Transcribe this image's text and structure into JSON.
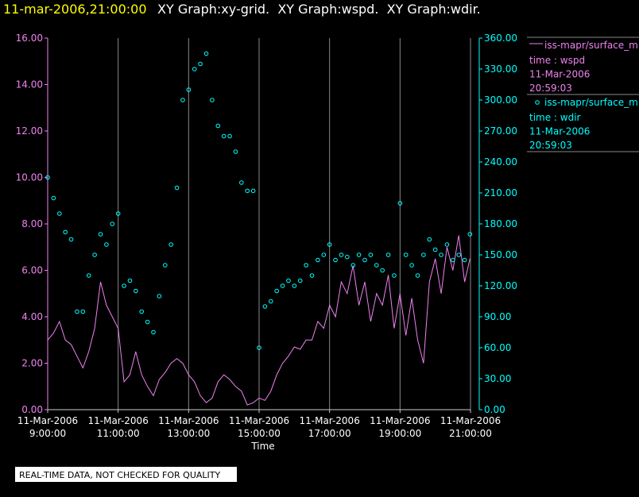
{
  "chart_data": {
    "type": "line",
    "header": {
      "timestamp": "11-mar-2006,21:00:00",
      "graphs": "XY Graph:xy-grid.  XY Graph:wspd.  XY Graph:wdir."
    },
    "x_label": "Time",
    "note": "REAL-TIME DATA, NOT CHECKED FOR QUALITY",
    "grid": true,
    "xlim": [
      "2006-03-11T09:00:00",
      "2006-03-11T21:00:00"
    ],
    "xticks": [
      {
        "value": "2006-03-11T09:00:00",
        "label": [
          "11-Mar-2006",
          "9:00:00"
        ]
      },
      {
        "value": "2006-03-11T11:00:00",
        "label": [
          "11-Mar-2006",
          "11:00:00"
        ]
      },
      {
        "value": "2006-03-11T13:00:00",
        "label": [
          "11-Mar-2006",
          "13:00:00"
        ]
      },
      {
        "value": "2006-03-11T15:00:00",
        "label": [
          "11-Mar-2006",
          "15:00:00"
        ]
      },
      {
        "value": "2006-03-11T17:00:00",
        "label": [
          "11-Mar-2006",
          "17:00:00"
        ]
      },
      {
        "value": "2006-03-11T19:00:00",
        "label": [
          "11-Mar-2006",
          "19:00:00"
        ]
      },
      {
        "value": "2006-03-11T21:00:00",
        "label": [
          "11-Mar-2006",
          "21:00:00"
        ]
      }
    ],
    "ylim": [
      0,
      16
    ],
    "yticks": [
      {
        "value": 0,
        "label": "0.00"
      },
      {
        "value": 2,
        "label": "2.00"
      },
      {
        "value": 4,
        "label": "4.00"
      },
      {
        "value": 6,
        "label": "6.00"
      },
      {
        "value": 8,
        "label": "8.00"
      },
      {
        "value": 10,
        "label": "10.00"
      },
      {
        "value": 12,
        "label": "12.00"
      },
      {
        "value": 14,
        "label": "14.00"
      },
      {
        "value": 16,
        "label": "16.00"
      }
    ],
    "y2lim": [
      0,
      360
    ],
    "y2ticks": [
      {
        "value": 0,
        "label": "0.00"
      },
      {
        "value": 30,
        "label": "30.00"
      },
      {
        "value": 60,
        "label": "60.00"
      },
      {
        "value": 90,
        "label": "90.00"
      },
      {
        "value": 120,
        "label": "120.00"
      },
      {
        "value": 150,
        "label": "150.00"
      },
      {
        "value": 180,
        "label": "180.00"
      },
      {
        "value": 210,
        "label": "210.00"
      },
      {
        "value": 240,
        "label": "240.00"
      },
      {
        "value": 270,
        "label": "270.00"
      },
      {
        "value": 300,
        "label": "300.00"
      },
      {
        "value": 330,
        "label": "330.00"
      },
      {
        "value": 360,
        "label": "360.00"
      }
    ],
    "x": [
      "2006-03-11T09:00:00",
      "2006-03-11T09:10:00",
      "2006-03-11T09:20:00",
      "2006-03-11T09:30:00",
      "2006-03-11T09:40:00",
      "2006-03-11T09:50:00",
      "2006-03-11T10:00:00",
      "2006-03-11T10:10:00",
      "2006-03-11T10:20:00",
      "2006-03-11T10:30:00",
      "2006-03-11T10:40:00",
      "2006-03-11T10:50:00",
      "2006-03-11T11:00:00",
      "2006-03-11T11:10:00",
      "2006-03-11T11:20:00",
      "2006-03-11T11:30:00",
      "2006-03-11T11:40:00",
      "2006-03-11T11:50:00",
      "2006-03-11T12:00:00",
      "2006-03-11T12:10:00",
      "2006-03-11T12:20:00",
      "2006-03-11T12:30:00",
      "2006-03-11T12:40:00",
      "2006-03-11T12:50:00",
      "2006-03-11T13:00:00",
      "2006-03-11T13:10:00",
      "2006-03-11T13:20:00",
      "2006-03-11T13:30:00",
      "2006-03-11T13:40:00",
      "2006-03-11T13:50:00",
      "2006-03-11T14:00:00",
      "2006-03-11T14:10:00",
      "2006-03-11T14:20:00",
      "2006-03-11T14:30:00",
      "2006-03-11T14:40:00",
      "2006-03-11T14:50:00",
      "2006-03-11T15:00:00",
      "2006-03-11T15:10:00",
      "2006-03-11T15:20:00",
      "2006-03-11T15:30:00",
      "2006-03-11T15:40:00",
      "2006-03-11T15:50:00",
      "2006-03-11T16:00:00",
      "2006-03-11T16:10:00",
      "2006-03-11T16:20:00",
      "2006-03-11T16:30:00",
      "2006-03-11T16:40:00",
      "2006-03-11T16:50:00",
      "2006-03-11T17:00:00",
      "2006-03-11T17:10:00",
      "2006-03-11T17:20:00",
      "2006-03-11T17:30:00",
      "2006-03-11T17:40:00",
      "2006-03-11T17:50:00",
      "2006-03-11T18:00:00",
      "2006-03-11T18:10:00",
      "2006-03-11T18:20:00",
      "2006-03-11T18:30:00",
      "2006-03-11T18:40:00",
      "2006-03-11T18:50:00",
      "2006-03-11T19:00:00",
      "2006-03-11T19:10:00",
      "2006-03-11T19:20:00",
      "2006-03-11T19:30:00",
      "2006-03-11T19:40:00",
      "2006-03-11T19:50:00",
      "2006-03-11T20:00:00",
      "2006-03-11T20:10:00",
      "2006-03-11T20:20:00",
      "2006-03-11T20:30:00",
      "2006-03-11T20:40:00",
      "2006-03-11T20:50:00",
      "2006-03-11T20:59:03"
    ],
    "series": [
      {
        "name": "iss-mapr/surface_m",
        "legend_lines": [
          "time : wspd",
          "11-Mar-2006",
          "20:59:03"
        ],
        "color": "#ee82ee",
        "style": "line",
        "axis": "y",
        "values": [
          3.0,
          3.3,
          3.8,
          3.0,
          2.8,
          2.3,
          1.8,
          2.5,
          3.5,
          5.5,
          4.5,
          4.0,
          3.5,
          1.2,
          1.5,
          2.5,
          1.5,
          1.0,
          0.6,
          1.3,
          1.6,
          2.0,
          2.2,
          2.0,
          1.5,
          1.2,
          0.6,
          0.3,
          0.5,
          1.2,
          1.5,
          1.3,
          1.0,
          0.8,
          0.2,
          0.3,
          0.5,
          0.4,
          0.8,
          1.5,
          2.0,
          2.3,
          2.7,
          2.6,
          3.0,
          3.0,
          3.8,
          3.5,
          4.5,
          4.0,
          5.5,
          5.0,
          6.2,
          4.5,
          5.5,
          3.8,
          5.0,
          4.5,
          5.8,
          3.5,
          5.0,
          3.2,
          4.8,
          3.0,
          2.0,
          5.5,
          6.5,
          5.0,
          7.0,
          6.0,
          7.5,
          5.5,
          6.5
        ]
      },
      {
        "name": "iss-mapr/surface_m",
        "legend_lines": [
          "time : wdir",
          "11-Mar-2006",
          "20:59:03"
        ],
        "color": "#00ffff",
        "style": "markers",
        "axis": "y2",
        "values": [
          225,
          205,
          190,
          172,
          165,
          95,
          95,
          130,
          150,
          170,
          160,
          180,
          190,
          120,
          125,
          115,
          95,
          85,
          75,
          110,
          140,
          160,
          215,
          300,
          310,
          330,
          335,
          345,
          300,
          275,
          265,
          265,
          250,
          220,
          212,
          212,
          60,
          100,
          105,
          115,
          120,
          125,
          120,
          125,
          140,
          130,
          145,
          150,
          160,
          145,
          150,
          148,
          140,
          150,
          145,
          150,
          140,
          135,
          150,
          130,
          200,
          150,
          140,
          130,
          150,
          165,
          155,
          150,
          160,
          145,
          150,
          145,
          170
        ]
      }
    ]
  }
}
